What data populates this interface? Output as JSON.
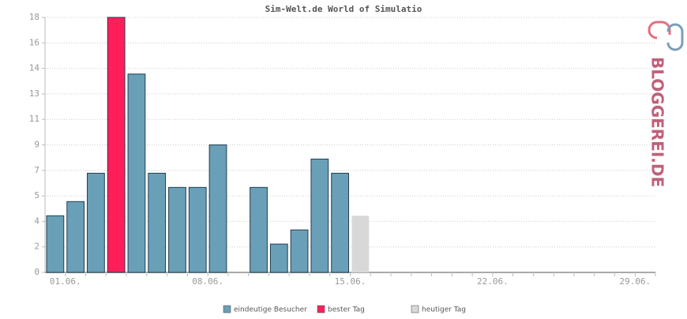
{
  "chart_data": {
    "type": "bar",
    "title": "Sim-Welt.de World of Simulatio",
    "logo": "BLOGGEREI.DE",
    "categories": [
      "01.06.",
      null,
      null,
      null,
      null,
      null,
      null,
      "08.06.",
      null,
      null,
      null,
      null,
      null,
      null,
      "15.06.",
      null,
      null,
      null,
      null,
      null,
      null,
      "22.06.",
      null,
      null,
      null,
      null,
      null,
      null,
      "29.06.",
      null
    ],
    "values": [
      4,
      5,
      7,
      18,
      14,
      7,
      6,
      6,
      9,
      0,
      6,
      2,
      3,
      8,
      7,
      4,
      null,
      null,
      null,
      null,
      null,
      null,
      null,
      null,
      null,
      null,
      null,
      null,
      null,
      null
    ],
    "colors": [
      "#6a9fb8",
      "#6a9fb8",
      "#6a9fb8",
      "#ff1e5a",
      "#6a9fb8",
      "#6a9fb8",
      "#6a9fb8",
      "#6a9fb8",
      "#6a9fb8",
      "#6a9fb8",
      "#6a9fb8",
      "#6a9fb8",
      "#6a9fb8",
      "#6a9fb8",
      "#6a9fb8",
      "#d8d8d8",
      null,
      null,
      null,
      null,
      null,
      null,
      null,
      null,
      null,
      null,
      null,
      null,
      null,
      null
    ],
    "legend": [
      {
        "name": "eindeutige Besucher",
        "color": "#6a9fb8"
      },
      {
        "name": "bester Tag",
        "color": "#ff1e5a"
      },
      {
        "name": "heutiger Tag",
        "color": "#d8d8d8"
      }
    ],
    "ylim": [
      0,
      18
    ],
    "yticks": [
      0,
      {
        "value": 1.8,
        "label": "2"
      },
      {
        "value": 3.6,
        "label": "4"
      },
      {
        "value": 5.4,
        "label": "5"
      },
      {
        "value": 7.2,
        "label": "7"
      },
      9,
      {
        "value": 10.8,
        "label": "11"
      },
      {
        "value": 12.6,
        "label": "13"
      },
      {
        "value": 14.4,
        "label": "14"
      },
      {
        "value": 16.2,
        "label": "16"
      },
      18
    ],
    "grid": true
  }
}
